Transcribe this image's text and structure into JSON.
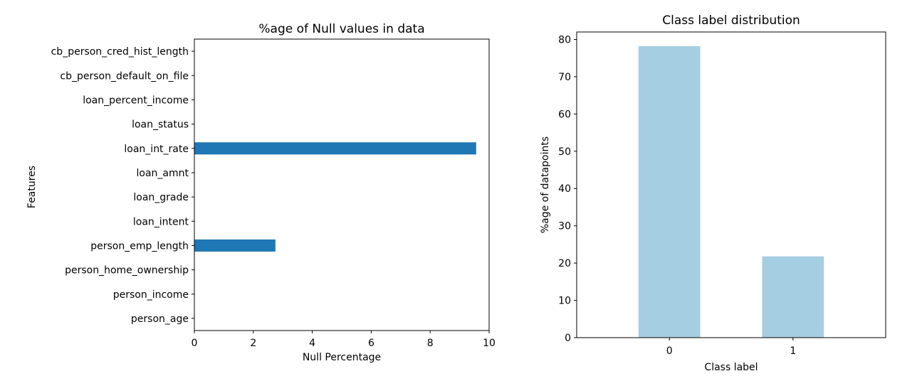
{
  "chart_data": [
    {
      "type": "bar",
      "orientation": "horizontal",
      "title": "%age of Null values in data",
      "xlabel": "Null Percentage",
      "ylabel": "Features",
      "xlim": [
        0,
        10
      ],
      "xticks": [
        0,
        2,
        4,
        6,
        8,
        10
      ],
      "categories": [
        "person_age",
        "person_income",
        "person_home_ownership",
        "person_emp_length",
        "loan_intent",
        "loan_grade",
        "loan_amnt",
        "loan_int_rate",
        "loan_status",
        "loan_percent_income",
        "cb_person_default_on_file",
        "cb_person_cred_hist_length"
      ],
      "values": [
        0,
        0,
        0,
        2.75,
        0,
        0,
        0,
        9.56,
        0,
        0,
        0,
        0
      ],
      "bar_color": "#1f77b4",
      "grid": false
    },
    {
      "type": "bar",
      "orientation": "vertical",
      "title": "Class label distribution",
      "xlabel": "Class label",
      "ylabel": "%age of datapoints",
      "ylim": [
        0,
        82
      ],
      "yticks": [
        0,
        10,
        20,
        30,
        40,
        50,
        60,
        70,
        80
      ],
      "categories": [
        "0",
        "1"
      ],
      "values": [
        78.2,
        21.8
      ],
      "bar_color": "#a6cee3",
      "grid": false
    }
  ]
}
